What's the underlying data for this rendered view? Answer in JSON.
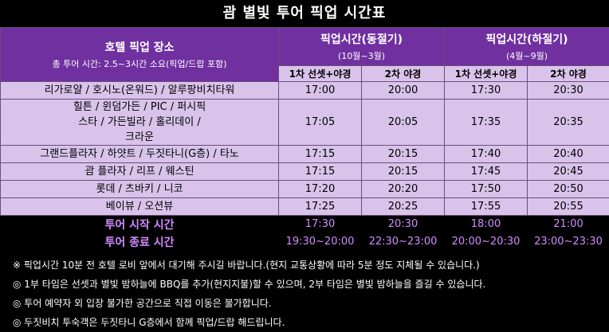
{
  "title": "괌 별빛 투어 픽업 시간표",
  "header": {
    "location_title": "호텔 픽업 장소",
    "location_subtitle": "총 투어 시간: 2.5~3시간 소요(픽업/드랍 포함)",
    "winter_title": "픽업시간(동절기)",
    "winter_period": "(10월~3월)",
    "summer_title": "픽업시간(하절기)",
    "summer_period": "(4월~9월)",
    "sub": [
      "1차 선셋+야경",
      "2차 야경",
      "1차 선셋+야경",
      "2차 야경"
    ]
  },
  "rows": [
    {
      "location": "리가로얄 / 호시노(온워드) / 알루팡비치타워",
      "times": [
        "17:00",
        "20:00",
        "17:30",
        "20:30"
      ]
    },
    {
      "location": "힐튼 / 윈덤가든 / PIC / 퍼시픽스타 / 가든빌라 / 홀리데이 / 크라운",
      "times": [
        "17:05",
        "20:05",
        "17:35",
        "20:35"
      ]
    },
    {
      "location": "그랜드플라자 / 하얏트 / 두짓타니(G층) / 타노",
      "times": [
        "17:15",
        "20:15",
        "17:40",
        "20:40"
      ]
    },
    {
      "location": "괌 플라자 / 리프 / 웨스틴",
      "times": [
        "17:15",
        "20:15",
        "17:45",
        "20:45"
      ]
    },
    {
      "location": "롯데 / 츠바키 / 니코",
      "times": [
        "17:20",
        "20:20",
        "17:50",
        "20:50"
      ]
    },
    {
      "location": "베이뷰 / 오션뷰",
      "times": [
        "17:25",
        "20:25",
        "17:55",
        "20:55"
      ]
    }
  ],
  "start": {
    "label": "투어 시작 시간",
    "times": [
      "17:30",
      "20:30",
      "18:00",
      "21:00"
    ]
  },
  "end": {
    "label": "투어 종료 시간",
    "times": [
      "19:30~20:00",
      "22:30~23:00",
      "20:00~20:30",
      "23:00~23:30"
    ]
  },
  "notes": [
    "※ 픽업시간 10분 전 호텔 로비 앞에서 대기해 주시길 바랍니다.(현지 교통상황에 따라 5분 정도 지체될 수 있습니다.)",
    "◎ 1부 타임은 선셋과 별빛 밤하늘에 BBQ를 추가(현지지불)할 수 있으며, 2부 타임은 별빛 밤하늘을 즐길 수 있습니다.",
    "◎ 투어 예약자 외 입장 불가한 공간으로 직접 이동은 불가합니다.",
    "◎ 두짓비치 투숙객은 두짓타니 G층에서 함께 픽업/드랍 해드립니다."
  ],
  "colors": {
    "header_bg": "#7030a0",
    "cell_bg": "#d9c3ea",
    "highlight_text": "#d28cff"
  }
}
